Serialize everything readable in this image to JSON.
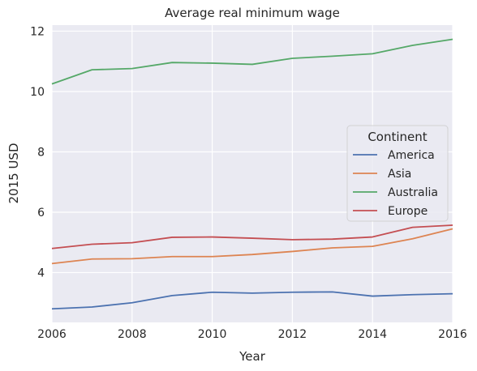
{
  "chart_data": {
    "type": "line",
    "title": "Average real minimum wage",
    "xlabel": "Year",
    "ylabel": "2015 USD",
    "x": [
      2006,
      2007,
      2008,
      2009,
      2010,
      2011,
      2012,
      2013,
      2014,
      2015,
      2016
    ],
    "xlim": [
      2006,
      2016
    ],
    "ylim": [
      2.35,
      12.2
    ],
    "xticks": [
      2006,
      2008,
      2010,
      2012,
      2014,
      2016
    ],
    "yticks": [
      4,
      6,
      8,
      10,
      12
    ],
    "grid": true,
    "legend": {
      "title": "Continent",
      "placement": "center-right"
    },
    "series": [
      {
        "name": "America",
        "color": "#4c72b0",
        "values": [
          2.8,
          2.86,
          3.0,
          3.24,
          3.35,
          3.32,
          3.35,
          3.36,
          3.22,
          3.27,
          3.3
        ]
      },
      {
        "name": "Asia",
        "color": "#dd8452",
        "values": [
          4.3,
          4.45,
          4.46,
          4.53,
          4.53,
          4.6,
          4.7,
          4.82,
          4.87,
          5.12,
          5.45
        ]
      },
      {
        "name": "Australia",
        "color": "#55a868",
        "values": [
          10.25,
          10.72,
          10.76,
          10.96,
          10.94,
          10.9,
          11.1,
          11.17,
          11.25,
          11.53,
          11.73
        ]
      },
      {
        "name": "Europe",
        "color": "#c44e52",
        "values": [
          4.8,
          4.94,
          4.99,
          5.17,
          5.18,
          5.14,
          5.09,
          5.11,
          5.18,
          5.5,
          5.57
        ]
      }
    ]
  }
}
